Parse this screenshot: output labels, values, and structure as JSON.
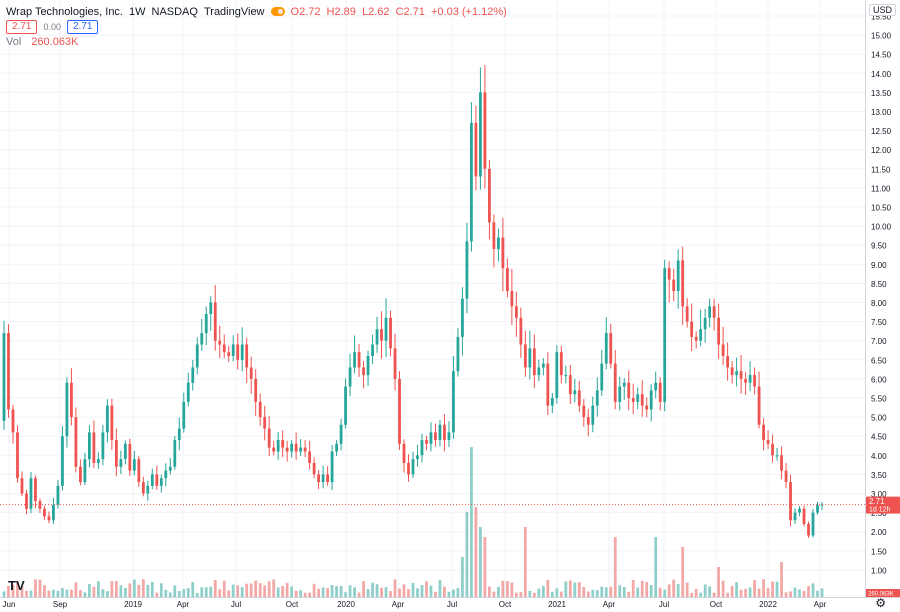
{
  "legend": {
    "symbol": "Wrap Technologies, Inc.",
    "interval": "1W",
    "exchange": "NASDAQ",
    "source": "TradingView",
    "open": "O2.72",
    "high": "H2.89",
    "low": "L2.62",
    "close": "C2.71",
    "change": "+0.03 (+1.12%)",
    "bid": "2.71",
    "spread": "0.00",
    "ask": "2.71",
    "vol_label": "Vol",
    "vol_value": "260.063K"
  },
  "currency": "USD",
  "price_tag": {
    "price": "2.71",
    "countdown": "1d 12h"
  },
  "vol_tag": "260.063K",
  "colors": {
    "up": "#26a69a",
    "down": "#ef5350",
    "up_vol": "#8fcfc9",
    "down_vol": "#f2a8a7",
    "grid": "#f0f3fa",
    "axis_text": "#131722"
  },
  "chart_data": {
    "type": "candlestick",
    "title": "Wrap Technologies, Inc. · 1W · NASDAQ",
    "x_tick_labels": [
      "Jun",
      "Sep",
      "2019",
      "Apr",
      "Jul",
      "Oct",
      "2020",
      "Apr",
      "Jul",
      "Oct",
      "2021",
      "Apr",
      "Jul",
      "Oct",
      "2022",
      "Apr"
    ],
    "y_tick_labels": [
      "1.00",
      "1.50",
      "2.00",
      "2.50",
      "3.00",
      "3.50",
      "4.00",
      "4.50",
      "5.00",
      "5.50",
      "6.00",
      "6.50",
      "7.00",
      "7.50",
      "8.00",
      "8.50",
      "9.00",
      "9.50",
      "10.00",
      "10.50",
      "11.00",
      "11.50",
      "12.00",
      "12.50",
      "13.00",
      "13.50",
      "14.00",
      "14.50",
      "15.00",
      "15.50"
    ],
    "ylim": [
      0.5,
      15.5
    ],
    "grid": true,
    "last_price": 2.71,
    "volume_label": "Vol",
    "closes": [
      7.2,
      5.2,
      4.6,
      3.4,
      3.0,
      2.6,
      3.4,
      2.8,
      2.6,
      2.4,
      2.3,
      2.7,
      3.2,
      4.5,
      5.9,
      5.0,
      3.7,
      3.3,
      3.9,
      4.6,
      3.8,
      3.9,
      4.6,
      5.3,
      4.4,
      3.7,
      3.9,
      4.3,
      3.6,
      3.9,
      3.3,
      3.0,
      3.2,
      3.5,
      3.2,
      3.4,
      3.6,
      3.7,
      4.4,
      4.7,
      5.4,
      5.9,
      6.3,
      6.9,
      7.2,
      7.7,
      8.0,
      7.0,
      6.9,
      6.7,
      6.6,
      6.9,
      6.5,
      6.9,
      6.3,
      6.0,
      5.4,
      5.0,
      4.7,
      4.2,
      4.1,
      4.4,
      4.2,
      4.1,
      4.3,
      4.1,
      4.2,
      4.1,
      3.8,
      3.5,
      3.3,
      3.5,
      3.3,
      4.1,
      4.3,
      4.8,
      5.8,
      6.3,
      6.7,
      6.3,
      6.1,
      6.6,
      6.9,
      7.3,
      7.0,
      7.6,
      6.8,
      6.0,
      4.3,
      3.8,
      3.5,
      3.9,
      4.0,
      4.4,
      4.3,
      4.6,
      4.4,
      4.8,
      4.4,
      4.6,
      6.2,
      7.1,
      8.1,
      9.6,
      12.7,
      11.3,
      13.5,
      11.5,
      10.1,
      9.4,
      9.7,
      8.9,
      8.3,
      7.9,
      7.6,
      6.9,
      6.3,
      6.8,
      6.1,
      6.3,
      6.4,
      5.3,
      5.5,
      6.7,
      6.1,
      6.1,
      5.6,
      5.7,
      5.3,
      5.0,
      4.8,
      5.3,
      5.7,
      6.4,
      7.2,
      6.4,
      5.4,
      5.8,
      5.9,
      5.5,
      5.4,
      5.6,
      5.3,
      5.2,
      5.7,
      5.9,
      5.4,
      8.9,
      8.6,
      8.3,
      9.1,
      7.9,
      7.5,
      7.1,
      7.0,
      7.3,
      7.6,
      7.9,
      7.6,
      6.9,
      6.6,
      6.3,
      6.1,
      6.2,
      6.0,
      5.9,
      6.1,
      5.8,
      4.8,
      4.4,
      4.3,
      4.0,
      4.0,
      3.6,
      3.3,
      2.3,
      2.5,
      2.6,
      2.2,
      1.9,
      2.5,
      2.7,
      2.71
    ],
    "volume_labels": [
      "260.063K"
    ]
  }
}
